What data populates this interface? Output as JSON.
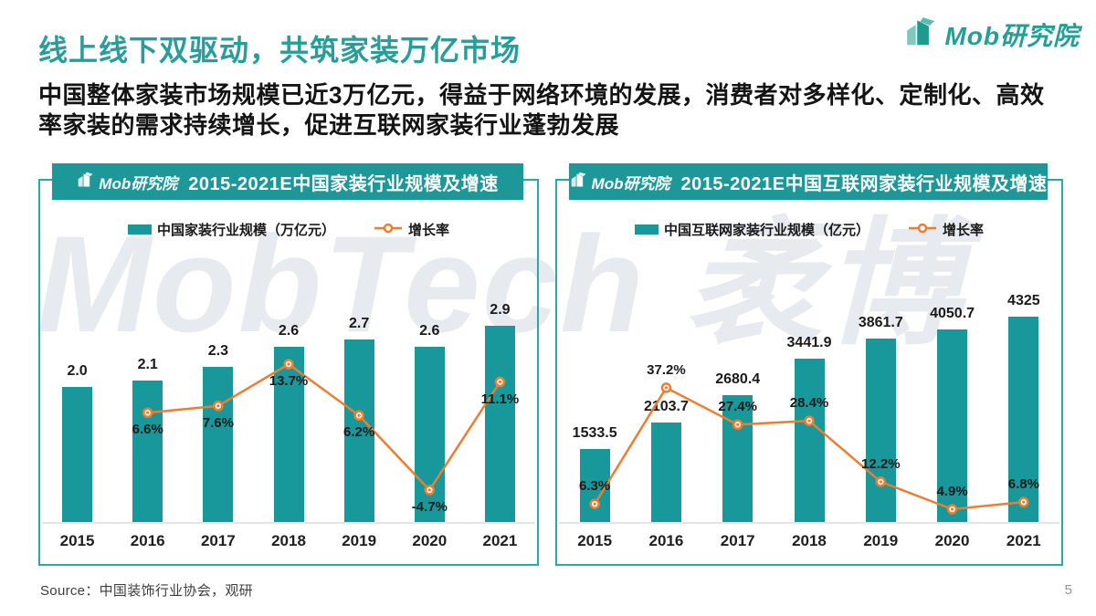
{
  "page": {
    "title": "线上线下双驱动，共筑家装万亿市场",
    "subtitle": "中国整体家装市场规模已近3万亿元，得益于网络环境的发展，消费者对多样化、定制化、高效率家装的需求持续增长，促进互联网家装行业蓬勃发展",
    "watermark": "MobTech 袤博",
    "source": "Source：中国装饰行业协会，观研",
    "page_number": "5"
  },
  "brand": {
    "mob": "Mob",
    "suffix": "研究院"
  },
  "colors": {
    "teal_bar": "#18989a",
    "teal_header": "#1e9798",
    "teal_border": "#2aa7a7",
    "title_teal": "#2a9d9b",
    "orange_line": "#ed7d31",
    "watermark_gray": "#e7eaee"
  },
  "chart_data": [
    {
      "type": "bar+line",
      "title": "2015-2021E中国家装行业规模及增速",
      "legend_position": "top",
      "categories": [
        "2015",
        "2016",
        "2017",
        "2018",
        "2019",
        "2020",
        "2021"
      ],
      "series": [
        {
          "name": "中国家装行业规模（万亿元）",
          "type": "bar",
          "values": [
            2.0,
            2.1,
            2.3,
            2.6,
            2.7,
            2.6,
            2.9
          ],
          "labels": [
            "2.0",
            "2.1",
            "2.3",
            "2.6",
            "2.7",
            "2.6",
            "2.9"
          ]
        },
        {
          "name": "增长率",
          "type": "line",
          "unit": "%",
          "values": [
            null,
            6.6,
            7.6,
            13.7,
            6.2,
            -4.7,
            11.1
          ],
          "labels": [
            "",
            "6.6%",
            "7.6%",
            "13.7%",
            "6.2%",
            "-4.7%",
            "11.1%"
          ]
        }
      ]
    },
    {
      "type": "bar+line",
      "title": "2015-2021E中国互联网家装行业规模及增速",
      "legend_position": "top",
      "categories": [
        "2015",
        "2016",
        "2017",
        "2018",
        "2019",
        "2020",
        "2021"
      ],
      "series": [
        {
          "name": "中国互联网家装行业规模（亿元）",
          "type": "bar",
          "values": [
            1533.5,
            2103.7,
            2680.4,
            3441.9,
            3861.7,
            4050.7,
            4325
          ],
          "labels": [
            "1533.5",
            "2103.7",
            "2680.4",
            "3441.9",
            "3861.7",
            "4050.7",
            "4325"
          ]
        },
        {
          "name": "增长率",
          "type": "line",
          "unit": "%",
          "values": [
            6.3,
            37.2,
            27.4,
            28.4,
            12.2,
            4.9,
            6.8
          ],
          "labels": [
            "6.3%",
            "37.2%",
            "27.4%",
            "28.4%",
            "12.2%",
            "4.9%",
            "6.8%"
          ]
        }
      ]
    }
  ]
}
